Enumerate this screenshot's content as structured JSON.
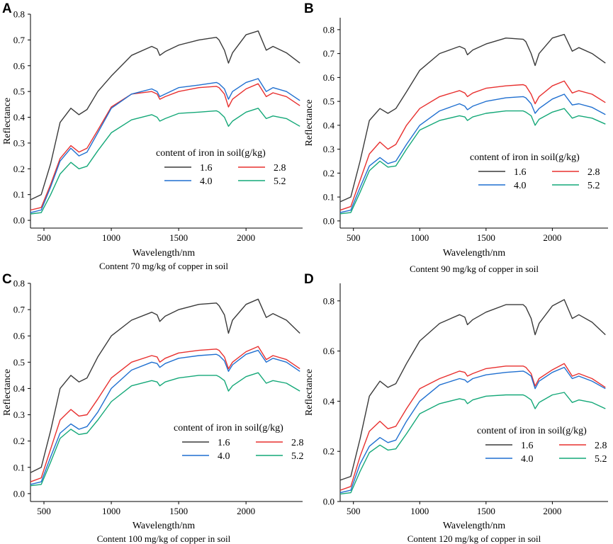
{
  "chart_data": [
    {
      "type": "line",
      "panel": "A",
      "subtitle": "Content 70 mg/kg of copper in soil",
      "xlabel": "Wavelength/nm",
      "ylabel": "Reflectance",
      "xlim": [
        400,
        2420
      ],
      "ylim": [
        -0.03,
        0.8
      ],
      "xticks": [
        {
          "v": 500,
          "label": "500"
        },
        {
          "v": 1000,
          "label": "1000"
        },
        {
          "v": 1500,
          "label": "1500"
        },
        {
          "v": 2000,
          "label": "2000"
        }
      ],
      "yticks": [
        {
          "v": 0.0,
          "label": "0.0"
        },
        {
          "v": 0.1,
          "label": "0.1"
        },
        {
          "v": 0.2,
          "label": "0.2"
        },
        {
          "v": 0.3,
          "label": "0.3"
        },
        {
          "v": 0.4,
          "label": "0.4"
        },
        {
          "v": 0.5,
          "label": "0.5"
        },
        {
          "v": 0.6,
          "label": "0.6"
        },
        {
          "v": 0.7,
          "label": "0.7"
        },
        {
          "v": 0.8,
          "label": "0.8"
        }
      ],
      "legend": {
        "title": "content of iron in soil(g/kg)",
        "position": "center-right"
      },
      "x": [
        400,
        480,
        550,
        620,
        700,
        760,
        820,
        900,
        1000,
        1150,
        1300,
        1340,
        1360,
        1400,
        1500,
        1650,
        1780,
        1800,
        1840,
        1870,
        1900,
        2000,
        2090,
        2150,
        2200,
        2300,
        2400
      ],
      "series": [
        {
          "name": "1.6",
          "color": "#3a3a3a",
          "values": [
            0.08,
            0.1,
            0.22,
            0.38,
            0.435,
            0.41,
            0.43,
            0.5,
            0.56,
            0.64,
            0.675,
            0.665,
            0.64,
            0.655,
            0.68,
            0.7,
            0.71,
            0.7,
            0.66,
            0.61,
            0.65,
            0.72,
            0.735,
            0.66,
            0.675,
            0.65,
            0.61
          ]
        },
        {
          "name": "2.8",
          "color": "#e8302f",
          "values": [
            0.04,
            0.05,
            0.14,
            0.24,
            0.29,
            0.265,
            0.28,
            0.35,
            0.44,
            0.49,
            0.5,
            0.49,
            0.47,
            0.48,
            0.5,
            0.515,
            0.52,
            0.515,
            0.49,
            0.44,
            0.47,
            0.51,
            0.53,
            0.48,
            0.495,
            0.48,
            0.445
          ]
        },
        {
          "name": "4.0",
          "color": "#1f6fd0",
          "values": [
            0.03,
            0.04,
            0.13,
            0.23,
            0.28,
            0.25,
            0.265,
            0.34,
            0.435,
            0.49,
            0.51,
            0.5,
            0.48,
            0.49,
            0.515,
            0.525,
            0.535,
            0.53,
            0.51,
            0.47,
            0.5,
            0.535,
            0.55,
            0.5,
            0.515,
            0.5,
            0.465
          ]
        },
        {
          "name": "5.2",
          "color": "#14a878",
          "values": [
            0.025,
            0.03,
            0.1,
            0.18,
            0.225,
            0.2,
            0.21,
            0.27,
            0.34,
            0.39,
            0.41,
            0.4,
            0.385,
            0.395,
            0.415,
            0.42,
            0.425,
            0.42,
            0.4,
            0.365,
            0.385,
            0.42,
            0.435,
            0.395,
            0.405,
            0.395,
            0.365
          ]
        }
      ]
    },
    {
      "type": "line",
      "panel": "B",
      "subtitle": "Content 90 mg/kg of copper in soil",
      "xlabel": "Wavelength/nm",
      "ylabel": "Reflectance",
      "xlim": [
        400,
        2420
      ],
      "ylim": [
        -0.03,
        0.85
      ],
      "xticks": [
        {
          "v": 500,
          "label": "500"
        },
        {
          "v": 1000,
          "label": "1000"
        },
        {
          "v": 1500,
          "label": "1500"
        },
        {
          "v": 2000,
          "label": "2000"
        }
      ],
      "yticks": [
        {
          "v": 0.0,
          "label": "0.0"
        },
        {
          "v": 0.1,
          "label": "0.1"
        },
        {
          "v": 0.2,
          "label": "0.2"
        },
        {
          "v": 0.3,
          "label": "0.3"
        },
        {
          "v": 0.4,
          "label": "0.4"
        },
        {
          "v": 0.5,
          "label": "0.5"
        },
        {
          "v": 0.6,
          "label": "0.6"
        },
        {
          "v": 0.7,
          "label": "0.7"
        },
        {
          "v": 0.8,
          "label": "0.8"
        }
      ],
      "legend": {
        "title": "content of iron in soil(g/kg)",
        "position": "center-right"
      },
      "x": [
        400,
        480,
        550,
        620,
        700,
        760,
        820,
        900,
        1000,
        1150,
        1300,
        1340,
        1360,
        1400,
        1500,
        1650,
        1780,
        1800,
        1840,
        1870,
        1900,
        2000,
        2090,
        2150,
        2200,
        2300,
        2400
      ],
      "series": [
        {
          "name": "1.6",
          "color": "#3a3a3a",
          "values": [
            0.08,
            0.1,
            0.25,
            0.42,
            0.47,
            0.45,
            0.47,
            0.54,
            0.63,
            0.7,
            0.73,
            0.72,
            0.695,
            0.715,
            0.74,
            0.765,
            0.76,
            0.75,
            0.7,
            0.65,
            0.7,
            0.765,
            0.78,
            0.71,
            0.725,
            0.7,
            0.66
          ]
        },
        {
          "name": "2.8",
          "color": "#e8302f",
          "values": [
            0.045,
            0.06,
            0.17,
            0.28,
            0.33,
            0.3,
            0.32,
            0.4,
            0.47,
            0.52,
            0.545,
            0.535,
            0.52,
            0.535,
            0.555,
            0.565,
            0.57,
            0.565,
            0.53,
            0.49,
            0.52,
            0.565,
            0.585,
            0.535,
            0.545,
            0.53,
            0.495
          ]
        },
        {
          "name": "4.0",
          "color": "#1f6fd0",
          "values": [
            0.035,
            0.045,
            0.14,
            0.23,
            0.265,
            0.24,
            0.25,
            0.32,
            0.4,
            0.46,
            0.49,
            0.48,
            0.465,
            0.48,
            0.5,
            0.515,
            0.52,
            0.515,
            0.49,
            0.45,
            0.47,
            0.51,
            0.53,
            0.485,
            0.49,
            0.475,
            0.445
          ]
        },
        {
          "name": "5.2",
          "color": "#14a878",
          "values": [
            0.03,
            0.035,
            0.12,
            0.21,
            0.25,
            0.225,
            0.23,
            0.3,
            0.38,
            0.42,
            0.44,
            0.435,
            0.42,
            0.435,
            0.45,
            0.46,
            0.46,
            0.455,
            0.44,
            0.4,
            0.425,
            0.455,
            0.47,
            0.43,
            0.44,
            0.43,
            0.405
          ]
        }
      ]
    },
    {
      "type": "line",
      "panel": "C",
      "subtitle": "Content 100 mg/kg of copper in soil",
      "xlabel": "Wavelength/nm",
      "ylabel": "Reflectance",
      "xlim": [
        400,
        2420
      ],
      "ylim": [
        -0.03,
        0.8
      ],
      "xticks": [
        {
          "v": 500,
          "label": "500"
        },
        {
          "v": 1000,
          "label": "1000"
        },
        {
          "v": 1500,
          "label": "1500"
        },
        {
          "v": 2000,
          "label": "2000"
        }
      ],
      "yticks": [
        {
          "v": 0.0,
          "label": "0.0"
        },
        {
          "v": 0.1,
          "label": "0.1"
        },
        {
          "v": 0.2,
          "label": "0.2"
        },
        {
          "v": 0.3,
          "label": "0.3"
        },
        {
          "v": 0.4,
          "label": "0.4"
        },
        {
          "v": 0.5,
          "label": "0.5"
        },
        {
          "v": 0.6,
          "label": "0.6"
        },
        {
          "v": 0.7,
          "label": "0.7"
        },
        {
          "v": 0.8,
          "label": "0.8"
        }
      ],
      "legend": {
        "title": "content of iron in soil(g/kg)",
        "position": "center-right"
      },
      "x": [
        400,
        480,
        550,
        620,
        700,
        760,
        820,
        900,
        1000,
        1150,
        1300,
        1340,
        1360,
        1400,
        1500,
        1650,
        1780,
        1800,
        1840,
        1870,
        1900,
        2000,
        2090,
        2150,
        2200,
        2300,
        2400
      ],
      "series": [
        {
          "name": "1.6",
          "color": "#3a3a3a",
          "values": [
            0.08,
            0.1,
            0.24,
            0.4,
            0.45,
            0.425,
            0.44,
            0.52,
            0.6,
            0.66,
            0.69,
            0.68,
            0.655,
            0.675,
            0.7,
            0.72,
            0.725,
            0.715,
            0.68,
            0.61,
            0.66,
            0.72,
            0.74,
            0.67,
            0.685,
            0.66,
            0.61
          ]
        },
        {
          "name": "2.8",
          "color": "#e8302f",
          "values": [
            0.045,
            0.06,
            0.17,
            0.28,
            0.32,
            0.295,
            0.3,
            0.36,
            0.44,
            0.5,
            0.525,
            0.52,
            0.5,
            0.515,
            0.535,
            0.545,
            0.55,
            0.545,
            0.52,
            0.475,
            0.5,
            0.54,
            0.56,
            0.51,
            0.525,
            0.51,
            0.475
          ]
        },
        {
          "name": "4.0",
          "color": "#1f6fd0",
          "values": [
            0.035,
            0.045,
            0.14,
            0.23,
            0.265,
            0.245,
            0.255,
            0.31,
            0.4,
            0.47,
            0.5,
            0.495,
            0.48,
            0.495,
            0.515,
            0.525,
            0.53,
            0.525,
            0.505,
            0.465,
            0.49,
            0.53,
            0.545,
            0.5,
            0.515,
            0.5,
            0.465
          ]
        },
        {
          "name": "5.2",
          "color": "#14a878",
          "values": [
            0.03,
            0.035,
            0.12,
            0.21,
            0.245,
            0.225,
            0.23,
            0.28,
            0.35,
            0.41,
            0.43,
            0.425,
            0.41,
            0.425,
            0.44,
            0.45,
            0.45,
            0.445,
            0.43,
            0.39,
            0.41,
            0.445,
            0.46,
            0.42,
            0.43,
            0.42,
            0.39
          ]
        }
      ]
    },
    {
      "type": "line",
      "panel": "D",
      "subtitle": "Content 120 mg/kg of copper in soil",
      "xlabel": "Wavelength/nm",
      "ylabel": "Reflectance",
      "xlim": [
        400,
        2420
      ],
      "ylim": [
        0.0,
        0.87
      ],
      "xticks": [
        {
          "v": 500,
          "label": "500"
        },
        {
          "v": 1000,
          "label": "1000"
        },
        {
          "v": 1500,
          "label": "1500"
        },
        {
          "v": 2000,
          "label": "2000"
        }
      ],
      "yticks": [
        {
          "v": 0.0,
          "label": "0.0"
        },
        {
          "v": 0.2,
          "label": "0.2"
        },
        {
          "v": 0.4,
          "label": "0.4"
        },
        {
          "v": 0.6,
          "label": "0.6"
        },
        {
          "v": 0.8,
          "label": "0.8"
        }
      ],
      "legend": {
        "title": "content of iron in soil(g/kg)",
        "position": "center-right"
      },
      "x": [
        400,
        480,
        550,
        620,
        700,
        760,
        820,
        900,
        1000,
        1150,
        1300,
        1340,
        1360,
        1400,
        1500,
        1650,
        1780,
        1800,
        1840,
        1870,
        1900,
        2000,
        2090,
        2150,
        2200,
        2300,
        2400
      ],
      "series": [
        {
          "name": "1.6",
          "color": "#3a3a3a",
          "values": [
            0.085,
            0.1,
            0.25,
            0.42,
            0.48,
            0.455,
            0.47,
            0.55,
            0.64,
            0.71,
            0.745,
            0.735,
            0.705,
            0.725,
            0.755,
            0.785,
            0.785,
            0.775,
            0.73,
            0.665,
            0.71,
            0.78,
            0.805,
            0.73,
            0.745,
            0.715,
            0.665
          ]
        },
        {
          "name": "2.8",
          "color": "#e8302f",
          "values": [
            0.045,
            0.06,
            0.18,
            0.28,
            0.32,
            0.29,
            0.3,
            0.37,
            0.45,
            0.49,
            0.52,
            0.515,
            0.5,
            0.51,
            0.53,
            0.54,
            0.54,
            0.535,
            0.51,
            0.46,
            0.49,
            0.525,
            0.55,
            0.5,
            0.51,
            0.49,
            0.455
          ]
        },
        {
          "name": "4.0",
          "color": "#1f6fd0",
          "values": [
            0.035,
            0.045,
            0.15,
            0.22,
            0.255,
            0.235,
            0.245,
            0.32,
            0.4,
            0.465,
            0.49,
            0.485,
            0.475,
            0.49,
            0.505,
            0.515,
            0.52,
            0.515,
            0.5,
            0.45,
            0.48,
            0.515,
            0.535,
            0.49,
            0.5,
            0.48,
            0.45
          ]
        },
        {
          "name": "5.2",
          "color": "#14a878",
          "values": [
            0.03,
            0.035,
            0.12,
            0.195,
            0.225,
            0.205,
            0.21,
            0.27,
            0.35,
            0.39,
            0.41,
            0.405,
            0.39,
            0.405,
            0.42,
            0.425,
            0.425,
            0.42,
            0.405,
            0.37,
            0.395,
            0.425,
            0.435,
            0.395,
            0.405,
            0.395,
            0.37
          ]
        }
      ]
    }
  ]
}
